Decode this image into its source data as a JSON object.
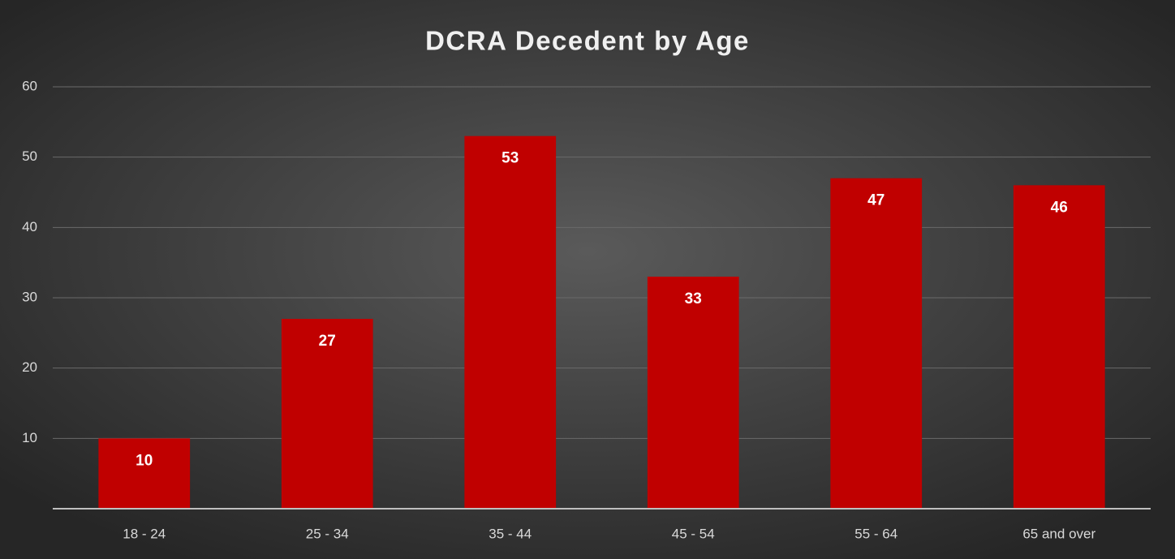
{
  "chart_data": {
    "type": "bar",
    "title": "DCRA Decedent by Age",
    "categories": [
      "18 - 24",
      "25 - 34",
      "35 - 44",
      "45 - 54",
      "55 - 64",
      "65 and over"
    ],
    "values": [
      10,
      27,
      53,
      33,
      47,
      46
    ],
    "color": "#c00000",
    "ylim": [
      0,
      60
    ],
    "yticks": [
      10,
      20,
      30,
      40,
      50,
      60
    ],
    "grid": true
  }
}
